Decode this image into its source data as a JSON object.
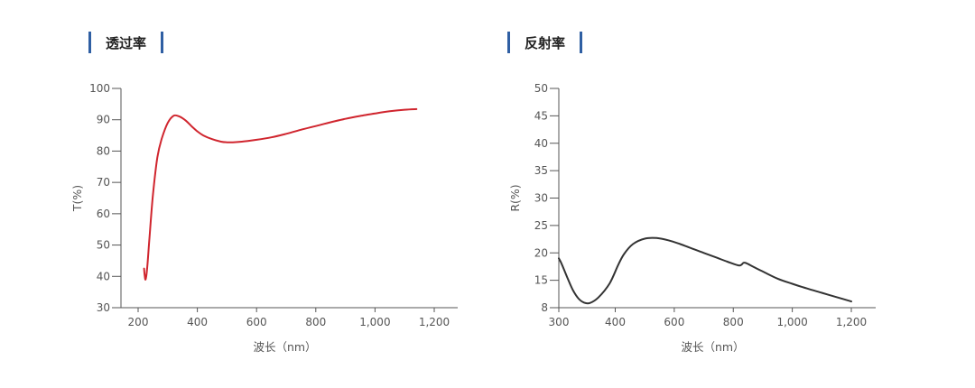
{
  "chart_data": [
    {
      "type": "line",
      "title": "透过率",
      "xlabel": "波长（nm）",
      "ylabel": "T(%)",
      "xlim": [
        150,
        1290
      ],
      "ylim": [
        30,
        100
      ],
      "xticks": [
        200,
        400,
        600,
        800,
        1000,
        1200
      ],
      "xtick_labels": [
        "200",
        "400",
        "600",
        "800",
        "1,000",
        "1,200"
      ],
      "yticks": [
        30,
        40,
        50,
        60,
        70,
        80,
        90,
        100
      ],
      "ytick_labels": [
        "30",
        "40",
        "50",
        "60",
        "70",
        "80",
        "90",
        "100"
      ],
      "color": "#d0252e",
      "series": [
        {
          "x": [
            220,
            222,
            225,
            230,
            238,
            250,
            265,
            280,
            300,
            320,
            340,
            360,
            380,
            400,
            420,
            450,
            480,
            500,
            520,
            550,
            600,
            650,
            700,
            750,
            800,
            850,
            900,
            950,
            1000,
            1050,
            1100,
            1140
          ],
          "y": [
            42.5,
            40.5,
            39,
            42,
            52,
            66,
            78,
            84,
            89,
            91.3,
            91.0,
            89.8,
            88.0,
            86.3,
            85.0,
            83.8,
            83.0,
            82.8,
            82.8,
            83.0,
            83.6,
            84.4,
            85.5,
            86.8,
            88.0,
            89.2,
            90.3,
            91.2,
            92.0,
            92.7,
            93.2,
            93.4
          ]
        }
      ]
    },
    {
      "type": "line",
      "title": "反射率",
      "xlabel": "波长（nm）",
      "ylabel": "R(%)",
      "xlim": [
        300,
        1290
      ],
      "ylim": [
        8,
        50
      ],
      "xticks": [
        300,
        400,
        600,
        800,
        1000,
        1200
      ],
      "xtick_labels": [
        "300",
        "400",
        "600",
        "800",
        "1,000",
        "1,200"
      ],
      "yticks": [
        8,
        15,
        20,
        25,
        30,
        35,
        40,
        45,
        50
      ],
      "ytick_labels": [
        "8",
        "15",
        "20",
        "25",
        "30",
        "35",
        "40",
        "45",
        "50"
      ],
      "color": "#333333",
      "series": [
        {
          "x": [
            300,
            305,
            315,
            325,
            335,
            345,
            355,
            370,
            390,
            410,
            430,
            460,
            500,
            540,
            580,
            620,
            660,
            700,
            740,
            780,
            820,
            835,
            845,
            870,
            900,
            950,
            1000,
            1050,
            1100,
            1150,
            1200
          ],
          "y": [
            19,
            18,
            15.5,
            12.5,
            10.3,
            9.3,
            9.2,
            10.6,
            14.2,
            17.8,
            19.8,
            21.6,
            22.6,
            22.7,
            22.3,
            21.6,
            20.8,
            20.0,
            19.2,
            18.4,
            17.7,
            18.2,
            18.1,
            17.4,
            16.6,
            15.3,
            14.1,
            12.9,
            11.8,
            10.7,
            9.6
          ]
        }
      ]
    }
  ]
}
